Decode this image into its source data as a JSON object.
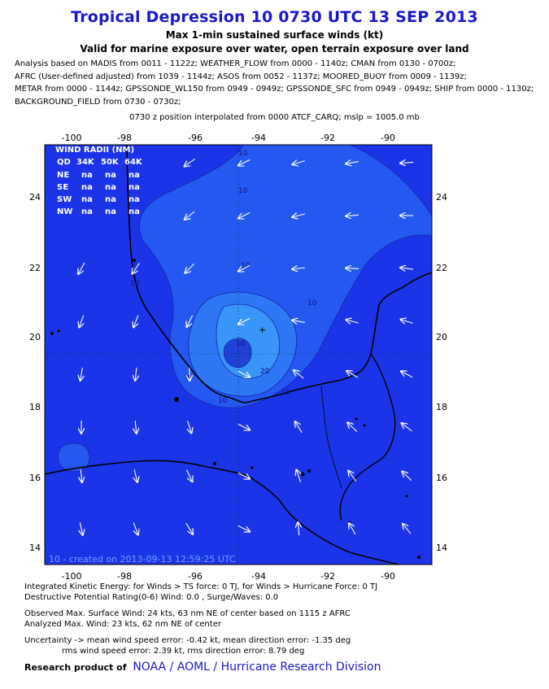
{
  "header": {
    "title": "Tropical Depression 10 0730 UTC 13 SEP 2013",
    "subtitle": "Max 1-min sustained surface winds (kt)",
    "validity": "Valid for marine exposure over water, open terrain exposure over land"
  },
  "analysis_lines": [
    "Analysis based on MADIS from 0011 - 1122z; WEATHER_FLOW from 0000 - 1140z; CMAN from 0130 - 0700z;",
    "AFRC (User-defined adjusted) from 1039 - 1144z; ASOS from 0052 - 1137z; MOORED_BUOY from 0009 - 1139z;",
    "METAR from 0000 - 1144z; GPSSONDE_WL150 from 0949 - 0949z; GPSSONDE_SFC from 0949 - 0949z; SHIP from 0000 - 1130z;",
    "BACKGROUND_FIELD from 0730 - 0730z;"
  ],
  "position_line": "0730 z position interpolated from 0000 ATCF_CARQ; mslp = 1005.0 mb",
  "map": {
    "lon_ticks_top": [
      "-100",
      "-98",
      "-96",
      "-94",
      "-92",
      "-90"
    ],
    "lon_ticks_bottom": [
      "-100",
      "-98",
      "-96",
      "-94",
      "-92",
      "-90"
    ],
    "lat_ticks_left": [
      "24",
      "22",
      "20",
      "18",
      "16",
      "14"
    ],
    "lat_ticks_right": [
      "24",
      "22",
      "20",
      "18",
      "16",
      "14"
    ],
    "contour_labels": [
      "10",
      "10",
      "10",
      "10",
      "10",
      "10",
      "20",
      "10",
      "10"
    ],
    "created_stamp": "10 - created on 2013-09-13 12:59:25 UTC",
    "colors": {
      "background": "#1c34e8",
      "level_10": "#2558f0",
      "level_15": "#2f78f5",
      "level_20": "#3796f8",
      "core_low": "#2142d6",
      "land": "#000000",
      "arrows": "#ffffff"
    }
  },
  "wind_radii": {
    "title": "WIND RADII (NM)",
    "headers": [
      "QD",
      "34K",
      "50K",
      "64K"
    ],
    "rows": [
      [
        "NE",
        "na",
        "na",
        "na"
      ],
      [
        "SE",
        "na",
        "na",
        "na"
      ],
      [
        "SW",
        "na",
        "na",
        "na"
      ],
      [
        "NW",
        "na",
        "na",
        "na"
      ]
    ]
  },
  "footer": {
    "ike": "Integrated Kinetic Energy: for Winds > TS force: 0 TJ, for Winds > Hurricane Force: 0 TJ",
    "dpr": "Destructive Potential Rating(0-6)  Wind: 0.0 , Surge/Waves: 0.0",
    "observed": "Observed Max. Surface Wind: 24 kts, 63 nm NE of center based on 1115 z AFRC",
    "analyzed": "Analyzed Max. Wind: 23 kts, 62 nm  NE of center",
    "uncertainty": "Uncertainty -> mean wind speed error:  -0.42 kt, mean direction error:  -1.35 deg",
    "rms": "rms wind speed error: 2.39 kt, rms direction error: 8.79 deg",
    "research_prefix": "Research product of",
    "research_org": "NOAA  /  AOML  /  Hurricane Research Division"
  }
}
